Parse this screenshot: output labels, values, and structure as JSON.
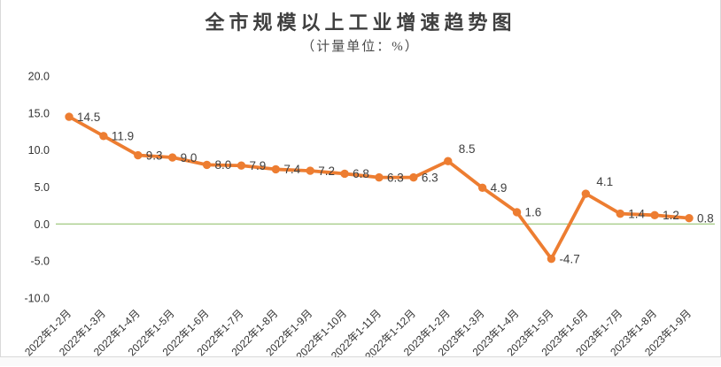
{
  "widget": {
    "background": "#FFFFFF",
    "border_color": "#D9D9D9"
  },
  "chart_data": {
    "type": "line",
    "title": "全市规模以上工业增速趋势图",
    "subtitle": "（计量单位：%）",
    "categories": [
      "2022年1-2月",
      "2022年1-3月",
      "2022年1-4月",
      "2022年1-5月",
      "2022年1-6月",
      "2022年1-7月",
      "2022年1-8月",
      "2022年1-9月",
      "2022年1-10月",
      "2022年1-11月",
      "2022年1-12月",
      "2023年1-2月",
      "2023年1-3月",
      "2023年1-4月",
      "2023年1-5月",
      "2023年1-6月",
      "2023年1-7月",
      "2023年1-8月",
      "2023年1-9月"
    ],
    "values": [
      14.5,
      11.9,
      9.3,
      9.0,
      8.0,
      7.9,
      7.4,
      7.2,
      6.8,
      6.3,
      6.3,
      8.5,
      4.9,
      1.6,
      -4.7,
      4.1,
      1.4,
      1.2,
      0.8
    ],
    "xlabel": "",
    "ylabel": "",
    "ylim": [
      -10,
      20
    ],
    "yticks": [
      20.0,
      15.0,
      10.0,
      5.0,
      0.0,
      -5.0,
      -10.0
    ],
    "ytick_format_decimals": 1,
    "grid": false,
    "zero_line": true,
    "legend": "none",
    "data_labels": true,
    "x_label_rotation_deg": -45,
    "colors": {
      "series": "#ED7D31",
      "zero_line": "#A9CE8C",
      "axis_text": "#333333",
      "label_text": "#404040",
      "title_text": "#3F3F3F"
    }
  }
}
